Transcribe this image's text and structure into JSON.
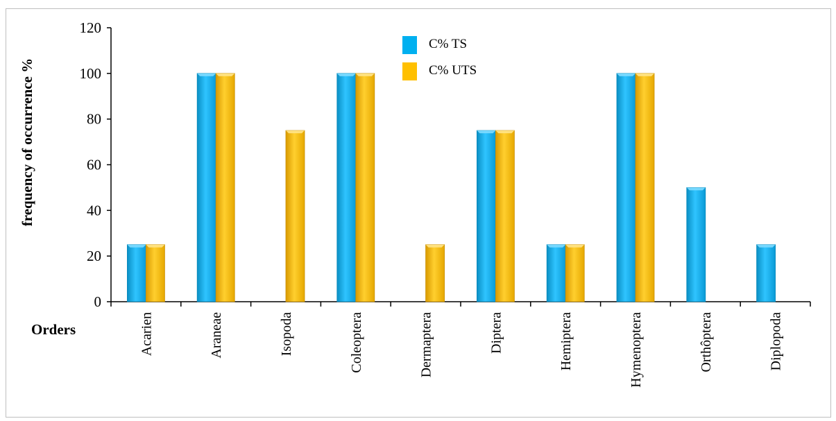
{
  "chart_data": {
    "type": "bar",
    "title": "",
    "xlabel": "Orders",
    "ylabel": "frequency of occurrence %",
    "ylim": [
      0,
      120
    ],
    "yticks": [
      0,
      20,
      40,
      60,
      80,
      100,
      120
    ],
    "categories": [
      "Acarien",
      "Araneae",
      "Isopoda",
      "Coleoptera",
      "Dermaptera",
      "Diptera",
      "Hemiptera",
      "Hymenoptera",
      "Orthôptera",
      "Diplopoda"
    ],
    "series": [
      {
        "name": "C% TS",
        "color": "#00b0f0",
        "values": [
          25,
          100,
          0,
          100,
          0,
          75,
          25,
          100,
          50,
          25
        ]
      },
      {
        "name": "C% UTS",
        "color": "#ffc000",
        "values": [
          25,
          100,
          75,
          100,
          25,
          75,
          25,
          100,
          0,
          0
        ]
      }
    ],
    "grid": false,
    "legend_position": "top-center"
  }
}
